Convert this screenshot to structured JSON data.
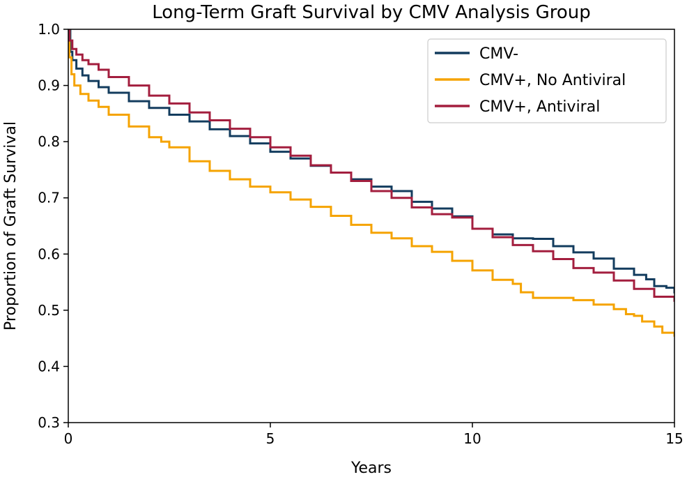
{
  "chart_data": {
    "type": "line",
    "title": "Long-Term Graft Survival by CMV Analysis Group",
    "xlabel": "Years",
    "ylabel": "Proportion of Graft Survival",
    "xlim": [
      0,
      15
    ],
    "ylim": [
      0.3,
      1.0
    ],
    "xticks": [
      "0",
      "5",
      "10",
      "15"
    ],
    "yticks": [
      "0.3",
      "0.4",
      "0.5",
      "0.6",
      "0.7",
      "0.8",
      "0.9",
      "1.0"
    ],
    "grid": false,
    "legend_position": "top-right",
    "step": true,
    "series": [
      {
        "name": "CMV-",
        "color": "#133c5e",
        "points": [
          [
            0,
            1.0
          ],
          [
            0.05,
            0.96
          ],
          [
            0.1,
            0.945
          ],
          [
            0.2,
            0.93
          ],
          [
            0.35,
            0.918
          ],
          [
            0.5,
            0.908
          ],
          [
            0.75,
            0.897
          ],
          [
            1.0,
            0.887
          ],
          [
            1.5,
            0.872
          ],
          [
            2.0,
            0.86
          ],
          [
            2.5,
            0.848
          ],
          [
            3.0,
            0.836
          ],
          [
            3.5,
            0.822
          ],
          [
            4.0,
            0.81
          ],
          [
            4.5,
            0.797
          ],
          [
            5.0,
            0.782
          ],
          [
            5.5,
            0.77
          ],
          [
            6.0,
            0.757
          ],
          [
            6.5,
            0.745
          ],
          [
            7.0,
            0.733
          ],
          [
            7.5,
            0.72
          ],
          [
            8.0,
            0.712
          ],
          [
            8.5,
            0.693
          ],
          [
            9.0,
            0.681
          ],
          [
            9.5,
            0.667
          ],
          [
            10.0,
            0.645
          ],
          [
            10.5,
            0.635
          ],
          [
            11.0,
            0.628
          ],
          [
            11.5,
            0.627
          ],
          [
            12.0,
            0.614
          ],
          [
            12.5,
            0.603
          ],
          [
            13.0,
            0.592
          ],
          [
            13.5,
            0.574
          ],
          [
            14.0,
            0.563
          ],
          [
            14.3,
            0.555
          ],
          [
            14.5,
            0.543
          ],
          [
            14.8,
            0.54
          ],
          [
            15.0,
            0.53
          ]
        ]
      },
      {
        "name": "CMV+, No Antiviral",
        "color": "#f5a300",
        "points": [
          [
            0,
            1.0
          ],
          [
            0.03,
            0.95
          ],
          [
            0.08,
            0.92
          ],
          [
            0.15,
            0.9
          ],
          [
            0.3,
            0.885
          ],
          [
            0.5,
            0.873
          ],
          [
            0.75,
            0.862
          ],
          [
            1.0,
            0.848
          ],
          [
            1.5,
            0.827
          ],
          [
            2.0,
            0.808
          ],
          [
            2.3,
            0.8
          ],
          [
            2.5,
            0.79
          ],
          [
            3.0,
            0.765
          ],
          [
            3.5,
            0.748
          ],
          [
            4.0,
            0.733
          ],
          [
            4.5,
            0.72
          ],
          [
            5.0,
            0.71
          ],
          [
            5.5,
            0.697
          ],
          [
            6.0,
            0.684
          ],
          [
            6.5,
            0.668
          ],
          [
            7.0,
            0.652
          ],
          [
            7.5,
            0.638
          ],
          [
            8.0,
            0.628
          ],
          [
            8.5,
            0.614
          ],
          [
            9.0,
            0.604
          ],
          [
            9.5,
            0.588
          ],
          [
            10.0,
            0.571
          ],
          [
            10.5,
            0.554
          ],
          [
            11.0,
            0.547
          ],
          [
            11.2,
            0.532
          ],
          [
            11.5,
            0.522
          ],
          [
            12.0,
            0.522
          ],
          [
            12.5,
            0.518
          ],
          [
            13.0,
            0.51
          ],
          [
            13.5,
            0.502
          ],
          [
            13.8,
            0.493
          ],
          [
            14.0,
            0.49
          ],
          [
            14.2,
            0.48
          ],
          [
            14.5,
            0.471
          ],
          [
            14.7,
            0.46
          ],
          [
            15.0,
            0.453
          ]
        ]
      },
      {
        "name": "CMV+, Antiviral",
        "color": "#a31e3e",
        "points": [
          [
            0,
            1.0
          ],
          [
            0.03,
            0.98
          ],
          [
            0.1,
            0.965
          ],
          [
            0.2,
            0.955
          ],
          [
            0.35,
            0.945
          ],
          [
            0.5,
            0.938
          ],
          [
            0.75,
            0.928
          ],
          [
            1.0,
            0.915
          ],
          [
            1.5,
            0.9
          ],
          [
            2.0,
            0.882
          ],
          [
            2.5,
            0.868
          ],
          [
            3.0,
            0.852
          ],
          [
            3.5,
            0.838
          ],
          [
            4.0,
            0.823
          ],
          [
            4.5,
            0.808
          ],
          [
            5.0,
            0.79
          ],
          [
            5.5,
            0.775
          ],
          [
            6.0,
            0.758
          ],
          [
            6.5,
            0.745
          ],
          [
            7.0,
            0.73
          ],
          [
            7.5,
            0.712
          ],
          [
            8.0,
            0.7
          ],
          [
            8.5,
            0.683
          ],
          [
            9.0,
            0.671
          ],
          [
            9.5,
            0.665
          ],
          [
            10.0,
            0.645
          ],
          [
            10.5,
            0.63
          ],
          [
            11.0,
            0.616
          ],
          [
            11.5,
            0.605
          ],
          [
            12.0,
            0.591
          ],
          [
            12.5,
            0.575
          ],
          [
            13.0,
            0.567
          ],
          [
            13.5,
            0.553
          ],
          [
            14.0,
            0.538
          ],
          [
            14.5,
            0.524
          ],
          [
            15.0,
            0.515
          ]
        ]
      }
    ]
  }
}
